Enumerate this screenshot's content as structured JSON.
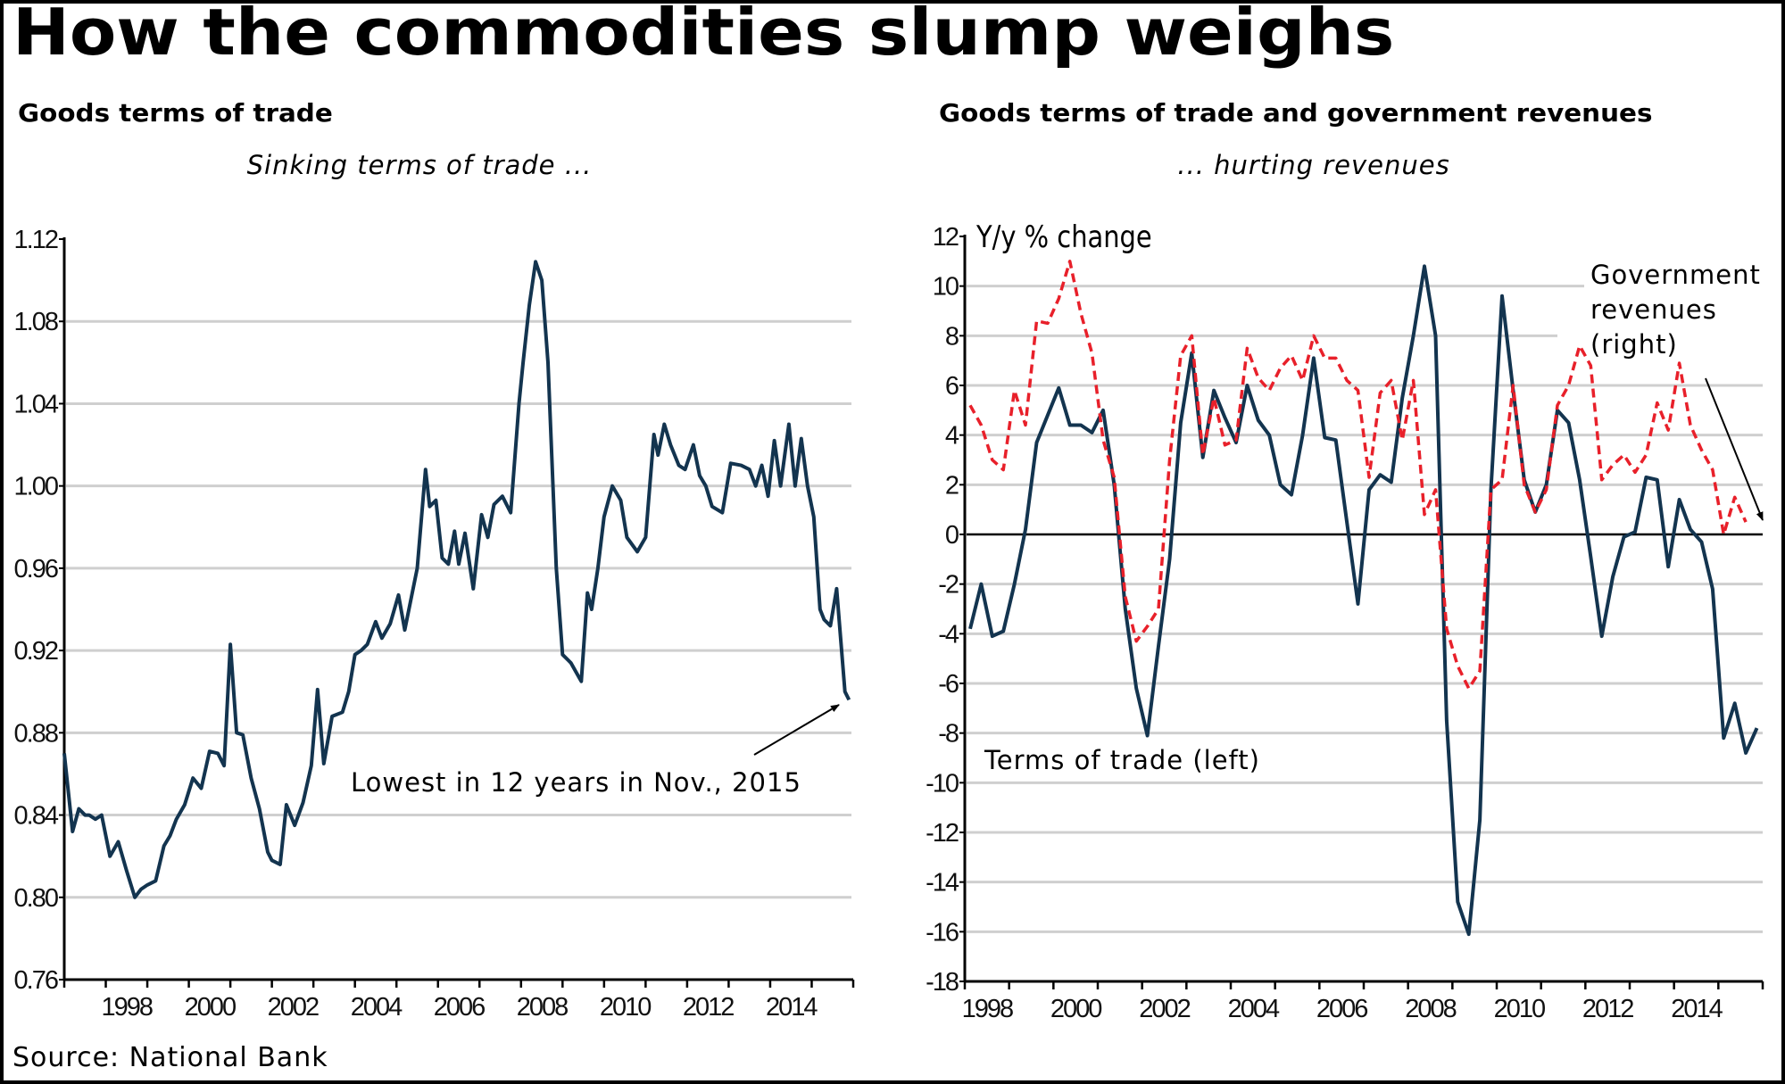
{
  "title": "How the commodities slump weighs",
  "source": "Source: National Bank",
  "chart_data": [
    {
      "type": "line",
      "title": "Goods terms of trade",
      "subtitle": "Sinking terms of trade ...",
      "xlabel": "",
      "ylabel": "",
      "xlim": [
        1997.0,
        2016.0
      ],
      "ylim": [
        0.76,
        1.12
      ],
      "yticks": [
        "0.76",
        "0.80",
        "0.84",
        "0.88",
        "0.92",
        "0.96",
        "1.00",
        "1.04",
        "1.08",
        "1.12"
      ],
      "xtick_labels": [
        "1998",
        "2000",
        "2002",
        "2004",
        "2006",
        "2008",
        "2010",
        "2012",
        "2014"
      ],
      "grid": true,
      "annotation": {
        "text": "Lowest in 12 years in Nov., 2015",
        "points_to": [
          2015.85,
          0.896
        ]
      },
      "series": [
        {
          "name": "Goods terms of trade",
          "color": "#13344f",
          "x": [
            1997.0,
            1997.2,
            1997.35,
            1997.5,
            1997.6,
            1997.75,
            1997.9,
            1998.1,
            1998.3,
            1998.5,
            1998.7,
            1998.85,
            1999.0,
            1999.2,
            1999.4,
            1999.55,
            1999.7,
            1999.9,
            2000.1,
            2000.3,
            2000.5,
            2000.7,
            2000.85,
            2001.0,
            2001.15,
            2001.3,
            2001.5,
            2001.7,
            2001.9,
            2002.0,
            2002.2,
            2002.35,
            2002.55,
            2002.75,
            2002.95,
            2003.1,
            2003.25,
            2003.45,
            2003.7,
            2003.85,
            2004.0,
            2004.15,
            2004.3,
            2004.5,
            2004.65,
            2004.85,
            2005.05,
            2005.2,
            2005.5,
            2005.7,
            2005.8,
            2005.95,
            2006.1,
            2006.25,
            2006.4,
            2006.5,
            2006.65,
            2006.85,
            2007.05,
            2007.2,
            2007.35,
            2007.55,
            2007.75,
            2007.95,
            2008.05,
            2008.2,
            2008.35,
            2008.5,
            2008.65,
            2008.85,
            2009.0,
            2009.2,
            2009.45,
            2009.6,
            2009.7,
            2009.85,
            2010.0,
            2010.2,
            2010.4,
            2010.55,
            2010.8,
            2011.0,
            2011.2,
            2011.3,
            2011.45,
            2011.6,
            2011.8,
            2011.95,
            2012.15,
            2012.3,
            2012.45,
            2012.6,
            2012.85,
            2013.05,
            2013.3,
            2013.5,
            2013.65,
            2013.8,
            2013.95,
            2014.1,
            2014.25,
            2014.45,
            2014.6,
            2014.75,
            2014.9,
            2015.05,
            2015.2,
            2015.3,
            2015.45,
            2015.6,
            2015.8,
            2015.9
          ],
          "values": [
            0.87,
            0.832,
            0.843,
            0.84,
            0.84,
            0.838,
            0.84,
            0.82,
            0.827,
            0.813,
            0.8,
            0.804,
            0.806,
            0.808,
            0.825,
            0.83,
            0.838,
            0.845,
            0.858,
            0.853,
            0.871,
            0.87,
            0.864,
            0.923,
            0.88,
            0.879,
            0.858,
            0.843,
            0.822,
            0.818,
            0.816,
            0.845,
            0.835,
            0.846,
            0.864,
            0.901,
            0.865,
            0.888,
            0.89,
            0.9,
            0.918,
            0.92,
            0.923,
            0.934,
            0.926,
            0.933,
            0.947,
            0.93,
            0.96,
            1.008,
            0.99,
            0.993,
            0.965,
            0.962,
            0.978,
            0.962,
            0.977,
            0.95,
            0.986,
            0.975,
            0.991,
            0.995,
            0.987,
            1.04,
            1.06,
            1.088,
            1.109,
            1.1,
            1.06,
            0.96,
            0.918,
            0.914,
            0.905,
            0.948,
            0.94,
            0.96,
            0.985,
            1.0,
            0.993,
            0.975,
            0.968,
            0.975,
            1.025,
            1.015,
            1.03,
            1.02,
            1.01,
            1.008,
            1.02,
            1.005,
            1.0,
            0.99,
            0.987,
            1.011,
            1.01,
            1.008,
            1.0,
            1.01,
            0.995,
            1.022,
            1.0,
            1.03,
            1.0,
            1.023,
            1.0,
            0.985,
            0.94,
            0.935,
            0.932,
            0.95,
            0.9,
            0.896
          ]
        }
      ]
    },
    {
      "type": "line",
      "title": "Goods terms of trade and government revenues",
      "subtitle": "... hurting revenues",
      "ylabel": "Y/y % change",
      "xlabel": "",
      "xlim": [
        1998.0,
        2016.0
      ],
      "ylim": [
        -18,
        12
      ],
      "yticks": [
        "12",
        "10",
        "8",
        "6",
        "4",
        "2",
        "0",
        "-2",
        "-4",
        "-6",
        "-8",
        "-10",
        "-12",
        "-14",
        "-16",
        "-18"
      ],
      "xtick_labels": [
        "1998",
        "2000",
        "2002",
        "2004",
        "2006",
        "2008",
        "2010",
        "2012",
        "2014"
      ],
      "grid": true,
      "annotations": [
        {
          "text": "Terms of trade (left)"
        },
        {
          "text": "Government revenues (right)",
          "lines": [
            "Government",
            "revenues",
            "(right)"
          ]
        }
      ],
      "series": [
        {
          "name": "Terms of trade (left)",
          "style": "solid",
          "color": "#13344f",
          "x": [
            1998.12,
            1998.37,
            1998.62,
            1998.87,
            1999.12,
            1999.37,
            1999.62,
            1999.87,
            2000.12,
            2000.37,
            2000.62,
            2000.87,
            2001.12,
            2001.37,
            2001.62,
            2001.87,
            2002.12,
            2002.37,
            2002.62,
            2002.87,
            2003.12,
            2003.37,
            2003.62,
            2003.87,
            2004.12,
            2004.37,
            2004.62,
            2004.87,
            2005.12,
            2005.37,
            2005.62,
            2005.87,
            2006.12,
            2006.37,
            2006.62,
            2006.87,
            2007.12,
            2007.37,
            2007.62,
            2007.87,
            2008.12,
            2008.37,
            2008.62,
            2008.87,
            2009.12,
            2009.37,
            2009.62,
            2009.87,
            2010.12,
            2010.37,
            2010.62,
            2010.87,
            2011.12,
            2011.37,
            2011.62,
            2011.87,
            2012.12,
            2012.37,
            2012.62,
            2012.87,
            2013.12,
            2013.37,
            2013.62,
            2013.87,
            2014.12,
            2014.37,
            2014.62,
            2014.87,
            2015.12,
            2015.37,
            2015.62,
            2015.87
          ],
          "values": [
            -3.8,
            -2.0,
            -4.1,
            -3.9,
            -2.0,
            0.2,
            3.7,
            4.8,
            5.9,
            4.4,
            4.4,
            4.1,
            5.0,
            2.0,
            -3.0,
            -6.2,
            -8.1,
            -4.5,
            -1.0,
            4.5,
            7.3,
            3.1,
            5.8,
            4.7,
            3.7,
            6.0,
            4.6,
            4.0,
            2.0,
            1.6,
            4.0,
            7.1,
            3.9,
            3.8,
            0.5,
            -2.8,
            1.8,
            2.4,
            2.1,
            5.5,
            8.0,
            10.8,
            8.0,
            -7.5,
            -14.8,
            -16.1,
            -11.5,
            1.8,
            9.6,
            5.8,
            2.2,
            0.9,
            2.0,
            5.0,
            4.5,
            2.2,
            -0.9,
            -4.1,
            -1.7,
            -0.1,
            0.1,
            2.3,
            2.2,
            -1.3,
            1.4,
            0.2,
            -0.3,
            -2.2,
            -8.2,
            -6.8,
            -8.8,
            -7.8
          ]
        },
        {
          "name": "Government revenues (right)",
          "style": "dashed",
          "color": "#e8202a",
          "x": [
            1998.12,
            1998.37,
            1998.62,
            1998.87,
            1999.12,
            1999.37,
            1999.62,
            1999.87,
            2000.12,
            2000.37,
            2000.62,
            2000.87,
            2001.12,
            2001.37,
            2001.62,
            2001.87,
            2002.12,
            2002.37,
            2002.62,
            2002.87,
            2003.12,
            2003.37,
            2003.62,
            2003.87,
            2004.12,
            2004.37,
            2004.62,
            2004.87,
            2005.12,
            2005.37,
            2005.62,
            2005.87,
            2006.12,
            2006.37,
            2006.62,
            2006.87,
            2007.12,
            2007.37,
            2007.62,
            2007.87,
            2008.12,
            2008.37,
            2008.62,
            2008.87,
            2009.12,
            2009.37,
            2009.62,
            2009.87,
            2010.12,
            2010.37,
            2010.62,
            2010.87,
            2011.12,
            2011.37,
            2011.62,
            2011.87,
            2012.12,
            2012.37,
            2012.62,
            2012.87,
            2013.12,
            2013.37,
            2013.62,
            2013.87,
            2014.12,
            2014.37,
            2014.62,
            2014.87,
            2015.12,
            2015.37,
            2015.62
          ],
          "values": [
            5.2,
            4.4,
            3.0,
            2.6,
            5.8,
            4.4,
            8.6,
            8.5,
            9.5,
            11.0,
            8.9,
            7.3,
            3.8,
            2.3,
            -2.5,
            -4.3,
            -3.7,
            -3.0,
            3.0,
            7.2,
            8.0,
            3.2,
            5.5,
            3.6,
            3.8,
            7.5,
            6.3,
            5.8,
            6.7,
            7.2,
            6.2,
            8.0,
            7.1,
            7.1,
            6.2,
            5.8,
            2.3,
            5.7,
            6.2,
            3.8,
            6.2,
            0.8,
            1.8,
            -3.8,
            -5.3,
            -6.2,
            -5.5,
            1.8,
            2.2,
            6.0,
            2.0,
            0.9,
            1.8,
            5.2,
            6.0,
            7.6,
            6.8,
            2.2,
            2.8,
            3.2,
            2.5,
            3.2,
            5.3,
            4.2,
            6.9,
            4.4,
            3.4,
            2.6,
            0.0,
            1.5,
            0.5
          ]
        }
      ]
    }
  ]
}
